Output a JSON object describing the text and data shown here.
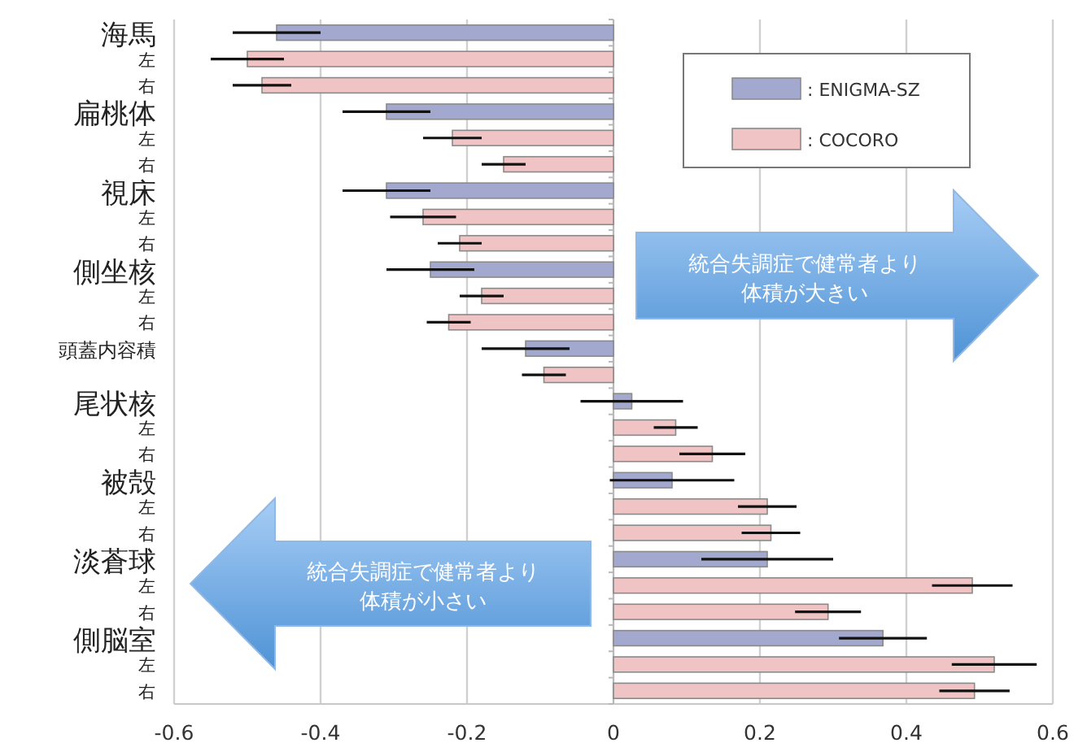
{
  "chart_data": {
    "type": "bar",
    "orientation": "horizontal",
    "categories": [
      "海馬",
      "左",
      "右",
      "扁桃体",
      "左",
      "右",
      "視床",
      "左",
      "右",
      "側坐核",
      "左",
      "右",
      "頭蓋内容積",
      null,
      "尾状核",
      "左",
      "右",
      "被殻",
      "左",
      "右",
      "淡蒼球",
      "左",
      "右",
      "側脳室",
      "左",
      "右"
    ],
    "series": [
      {
        "name": ": ENIGMA-SZ",
        "color": "#a3a8cf",
        "values": [
          -0.46,
          null,
          null,
          -0.31,
          null,
          null,
          -0.31,
          null,
          null,
          -0.25,
          null,
          null,
          -0.12,
          null,
          0.025,
          null,
          null,
          0.08,
          null,
          null,
          0.21,
          null,
          null,
          0.368,
          null,
          null
        ],
        "errors": [
          0.06,
          null,
          null,
          0.06,
          null,
          null,
          0.06,
          null,
          null,
          0.06,
          null,
          null,
          0.06,
          null,
          0.07,
          null,
          null,
          0.085,
          null,
          null,
          0.09,
          null,
          null,
          0.06,
          null,
          null
        ]
      },
      {
        "name": ": COCORO",
        "color": "#f0c4c4",
        "values": [
          null,
          -0.5,
          -0.48,
          null,
          -0.22,
          -0.15,
          null,
          -0.26,
          -0.21,
          null,
          -0.18,
          -0.225,
          null,
          -0.095,
          null,
          0.085,
          0.135,
          null,
          0.21,
          0.215,
          null,
          0.49,
          0.293,
          null,
          0.52,
          0.493
        ],
        "errors": [
          null,
          0.05,
          0.04,
          null,
          0.04,
          0.03,
          null,
          0.045,
          0.03,
          null,
          0.03,
          0.03,
          null,
          0.03,
          null,
          0.03,
          0.045,
          null,
          0.04,
          0.04,
          null,
          0.055,
          0.045,
          null,
          0.058,
          0.048
        ]
      }
    ],
    "xlim": [
      -0.6,
      0.6
    ],
    "xticks": [
      -0.6,
      -0.4,
      -0.2,
      0,
      0.2,
      0.4,
      0.6
    ],
    "grid": "x",
    "legend": "top right",
    "annotations": [
      "統合失調症で健常者より体積が大きい",
      "統合失調症で健常者より体積が小さい"
    ]
  }
}
